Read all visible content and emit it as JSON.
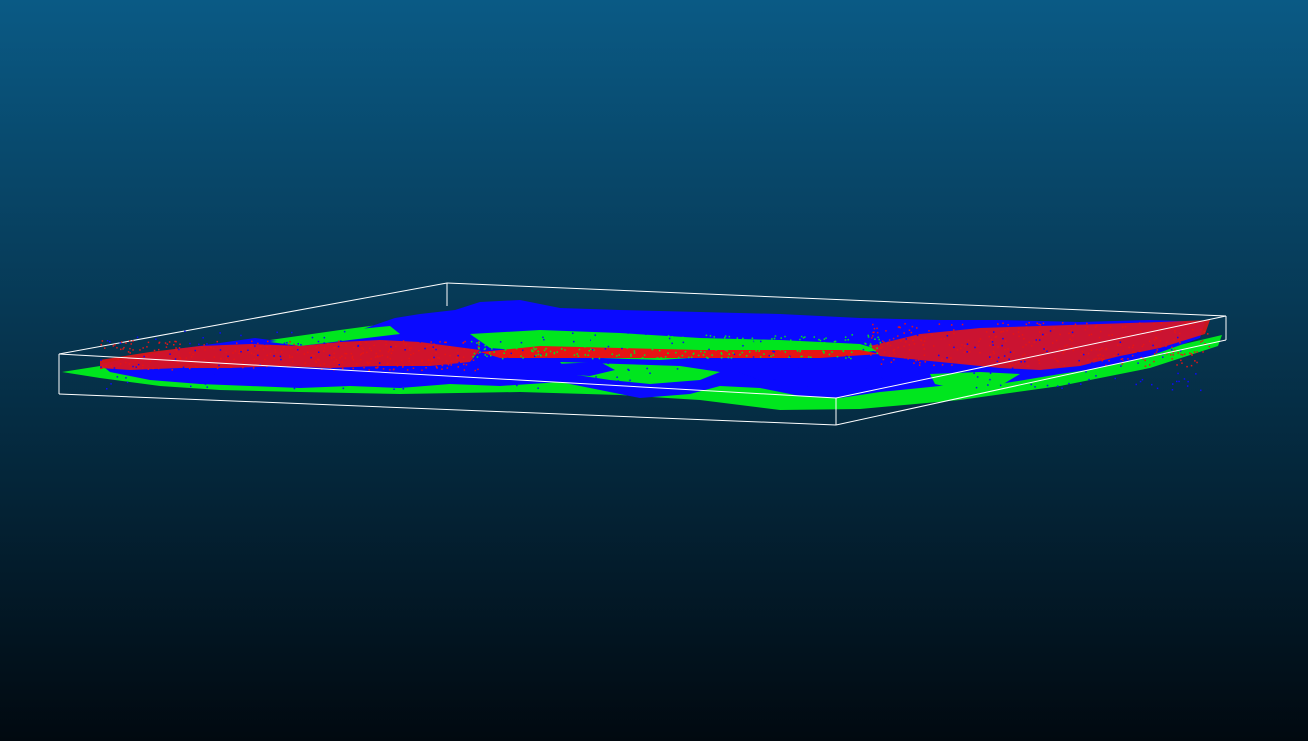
{
  "viewer": {
    "background": {
      "top_color": "#0A5A85",
      "bottom_color": "#010910"
    },
    "bounding_box": {
      "color": "#FFFFFF"
    },
    "point_cloud": {
      "classes": [
        {
          "color": "#00E61E"
        },
        {
          "color": "#0A0AFF"
        },
        {
          "color": "#E61414"
        }
      ]
    }
  }
}
